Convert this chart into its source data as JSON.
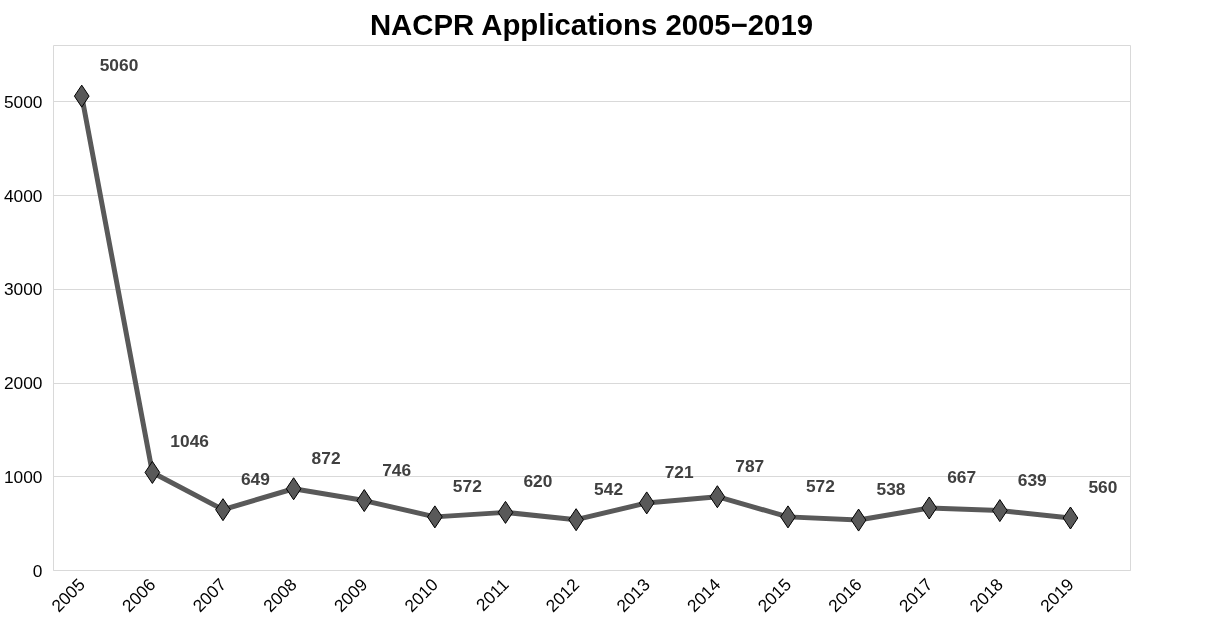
{
  "chart_data": {
    "type": "line",
    "title": "NACPR Applications 2005−2019",
    "categories": [
      "2005",
      "2006",
      "2007",
      "2008",
      "2009",
      "2010",
      "2011",
      "2012",
      "2013",
      "2014",
      "2015",
      "2016",
      "2017",
      "2018",
      "2019"
    ],
    "series": [
      {
        "color": "#595959",
        "values": [
          5060,
          1046,
          649,
          872,
          746,
          572,
          620,
          542,
          721,
          787,
          572,
          538,
          667,
          639,
          560
        ]
      }
    ],
    "ylim": [
      0,
      5600
    ],
    "yticks": [
      0,
      1000,
      2000,
      3000,
      4000,
      5000
    ],
    "grid": "y",
    "marker": "diamond",
    "line_style": "solid",
    "data_labels": true
  }
}
